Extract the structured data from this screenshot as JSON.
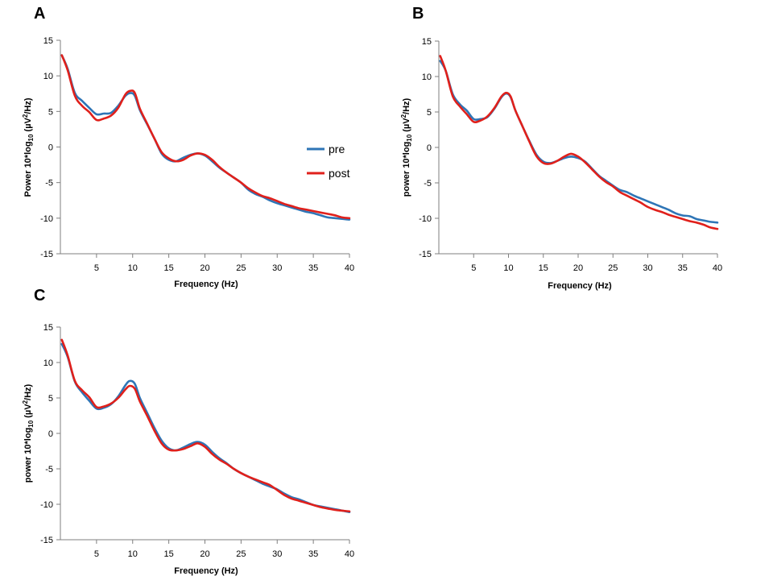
{
  "colors": {
    "pre": "#2e75b6",
    "post": "#e0201b"
  },
  "chart_data": [
    {
      "type": "line",
      "panel": "A",
      "xlabel": "Frequency (Hz)",
      "ylabel_parts": [
        "Power 10*log",
        "10",
        " (µV",
        "2",
        "/Hz)"
      ],
      "xlim": [
        0,
        40
      ],
      "ylim": [
        -15,
        15
      ],
      "xticks": [
        5,
        10,
        15,
        20,
        25,
        30,
        35,
        40
      ],
      "yticks": [
        15,
        10,
        5,
        0,
        -5,
        -10,
        -15
      ],
      "legend": {
        "position": "center-right",
        "entries": [
          "pre",
          "post"
        ]
      },
      "series": [
        {
          "name": "pre",
          "points": [
            [
              0.2,
              12.9
            ],
            [
              1,
              11
            ],
            [
              2,
              7.6
            ],
            [
              3,
              6.5
            ],
            [
              4,
              5.5
            ],
            [
              5,
              4.6
            ],
            [
              6,
              4.7
            ],
            [
              7,
              4.8
            ],
            [
              8,
              5.8
            ],
            [
              9,
              7.2
            ],
            [
              9.7,
              7.6
            ],
            [
              10.3,
              7.2
            ],
            [
              11,
              5.2
            ],
            [
              12,
              3.2
            ],
            [
              13,
              1.2
            ],
            [
              14,
              -0.9
            ],
            [
              15,
              -1.8
            ],
            [
              16,
              -2
            ],
            [
              17,
              -1.5
            ],
            [
              18,
              -1.1
            ],
            [
              19,
              -0.9
            ],
            [
              20,
              -1.2
            ],
            [
              21,
              -2
            ],
            [
              22,
              -2.9
            ],
            [
              23,
              -3.6
            ],
            [
              24,
              -4.3
            ],
            [
              25,
              -5
            ],
            [
              26,
              -6
            ],
            [
              27,
              -6.6
            ],
            [
              28,
              -7
            ],
            [
              29,
              -7.5
            ],
            [
              30,
              -7.9
            ],
            [
              31,
              -8.2
            ],
            [
              32,
              -8.5
            ],
            [
              33,
              -8.8
            ],
            [
              34,
              -9.1
            ],
            [
              35,
              -9.3
            ],
            [
              36,
              -9.6
            ],
            [
              37,
              -9.9
            ],
            [
              38,
              -10
            ],
            [
              39,
              -10.1
            ],
            [
              40,
              -10.2
            ]
          ]
        },
        {
          "name": "post",
          "points": [
            [
              0.2,
              12.9
            ],
            [
              1,
              10.8
            ],
            [
              2,
              7.2
            ],
            [
              3,
              5.8
            ],
            [
              4,
              4.9
            ],
            [
              5,
              3.8
            ],
            [
              6,
              4
            ],
            [
              7,
              4.4
            ],
            [
              8,
              5.5
            ],
            [
              9,
              7.4
            ],
            [
              9.7,
              7.9
            ],
            [
              10.3,
              7.6
            ],
            [
              11,
              5.4
            ],
            [
              12,
              3.3
            ],
            [
              13,
              1.2
            ],
            [
              14,
              -0.7
            ],
            [
              15,
              -1.6
            ],
            [
              16,
              -2
            ],
            [
              17,
              -1.8
            ],
            [
              18,
              -1.2
            ],
            [
              19,
              -0.9
            ],
            [
              20,
              -1.1
            ],
            [
              21,
              -1.8
            ],
            [
              22,
              -2.8
            ],
            [
              23,
              -3.6
            ],
            [
              24,
              -4.3
            ],
            [
              25,
              -5
            ],
            [
              26,
              -5.8
            ],
            [
              27,
              -6.4
            ],
            [
              28,
              -6.9
            ],
            [
              29,
              -7.2
            ],
            [
              30,
              -7.6
            ],
            [
              31,
              -8
            ],
            [
              32,
              -8.3
            ],
            [
              33,
              -8.6
            ],
            [
              34,
              -8.8
            ],
            [
              35,
              -9
            ],
            [
              36,
              -9.2
            ],
            [
              37,
              -9.4
            ],
            [
              38,
              -9.6
            ],
            [
              39,
              -9.9
            ],
            [
              40,
              -10
            ]
          ]
        }
      ]
    },
    {
      "type": "line",
      "panel": "B",
      "xlabel": "Frequency (Hz)",
      "ylabel_parts": [
        "power 10*log",
        "10",
        " (µV",
        "2",
        "/Hz)"
      ],
      "xlim": [
        0,
        40
      ],
      "ylim": [
        -15,
        15
      ],
      "xticks": [
        5,
        10,
        15,
        20,
        25,
        30,
        35,
        40
      ],
      "yticks": [
        15,
        10,
        5,
        0,
        -5,
        -10,
        -15
      ],
      "legend": null,
      "series": [
        {
          "name": "pre",
          "points": [
            [
              0.2,
              12.2
            ],
            [
              1,
              10.8
            ],
            [
              2,
              7.5
            ],
            [
              3,
              6.1
            ],
            [
              4,
              5.2
            ],
            [
              5,
              4
            ],
            [
              6,
              4
            ],
            [
              7,
              4.3
            ],
            [
              8,
              5.5
            ],
            [
              9,
              7.1
            ],
            [
              9.7,
              7.6
            ],
            [
              10.3,
              7.1
            ],
            [
              11,
              5.2
            ],
            [
              12,
              3
            ],
            [
              13,
              0.9
            ],
            [
              14,
              -1
            ],
            [
              15,
              -2
            ],
            [
              16,
              -2.2
            ],
            [
              17,
              -1.9
            ],
            [
              18,
              -1.5
            ],
            [
              19,
              -1.3
            ],
            [
              20,
              -1.5
            ],
            [
              21,
              -2
            ],
            [
              22,
              -3
            ],
            [
              23,
              -4
            ],
            [
              24,
              -4.7
            ],
            [
              25,
              -5.4
            ],
            [
              26,
              -6
            ],
            [
              27,
              -6.3
            ],
            [
              28,
              -6.8
            ],
            [
              29,
              -7.2
            ],
            [
              30,
              -7.6
            ],
            [
              31,
              -8
            ],
            [
              32,
              -8.4
            ],
            [
              33,
              -8.8
            ],
            [
              34,
              -9.3
            ],
            [
              35,
              -9.6
            ],
            [
              36,
              -9.7
            ],
            [
              37,
              -10.1
            ],
            [
              38,
              -10.3
            ],
            [
              39,
              -10.5
            ],
            [
              40,
              -10.6
            ]
          ]
        },
        {
          "name": "post",
          "points": [
            [
              0.2,
              12.9
            ],
            [
              1,
              10.8
            ],
            [
              2,
              7.2
            ],
            [
              3,
              5.8
            ],
            [
              4,
              4.7
            ],
            [
              5,
              3.6
            ],
            [
              6,
              3.8
            ],
            [
              7,
              4.4
            ],
            [
              8,
              5.6
            ],
            [
              9,
              7.2
            ],
            [
              9.7,
              7.7
            ],
            [
              10.3,
              7.2
            ],
            [
              11,
              5.2
            ],
            [
              12,
              3
            ],
            [
              13,
              0.8
            ],
            [
              14,
              -1.2
            ],
            [
              15,
              -2.2
            ],
            [
              16,
              -2.3
            ],
            [
              17,
              -1.9
            ],
            [
              18,
              -1.3
            ],
            [
              19,
              -0.9
            ],
            [
              20,
              -1.3
            ],
            [
              21,
              -2.1
            ],
            [
              22,
              -3.1
            ],
            [
              23,
              -4.1
            ],
            [
              24,
              -4.9
            ],
            [
              25,
              -5.5
            ],
            [
              26,
              -6.3
            ],
            [
              27,
              -6.8
            ],
            [
              28,
              -7.3
            ],
            [
              29,
              -7.8
            ],
            [
              30,
              -8.4
            ],
            [
              31,
              -8.8
            ],
            [
              32,
              -9.1
            ],
            [
              33,
              -9.5
            ],
            [
              34,
              -9.8
            ],
            [
              35,
              -10.1
            ],
            [
              36,
              -10.4
            ],
            [
              37,
              -10.6
            ],
            [
              38,
              -10.9
            ],
            [
              39,
              -11.3
            ],
            [
              40,
              -11.5
            ]
          ]
        }
      ]
    },
    {
      "type": "line",
      "panel": "C",
      "xlabel": "Frequency (Hz)",
      "ylabel_parts": [
        "power 10*log",
        "10",
        " (µV",
        "2",
        "/Hz)"
      ],
      "xlim": [
        0,
        40
      ],
      "ylim": [
        -15,
        15
      ],
      "xticks": [
        5,
        10,
        15,
        20,
        25,
        30,
        35,
        40
      ],
      "yticks": [
        15,
        10,
        5,
        0,
        -5,
        -10,
        -15
      ],
      "legend": null,
      "series": [
        {
          "name": "pre",
          "points": [
            [
              0.2,
              12.6
            ],
            [
              1,
              10.8
            ],
            [
              2,
              7.3
            ],
            [
              3,
              5.8
            ],
            [
              4,
              4.6
            ],
            [
              5,
              3.5
            ],
            [
              6,
              3.6
            ],
            [
              7,
              4.1
            ],
            [
              8,
              5.2
            ],
            [
              9,
              6.8
            ],
            [
              9.6,
              7.4
            ],
            [
              10.3,
              7
            ],
            [
              11,
              5
            ],
            [
              12,
              2.9
            ],
            [
              13,
              0.8
            ],
            [
              14,
              -1
            ],
            [
              15,
              -2.1
            ],
            [
              16,
              -2.4
            ],
            [
              17,
              -2
            ],
            [
              18,
              -1.5
            ],
            [
              19,
              -1.2
            ],
            [
              20,
              -1.6
            ],
            [
              21,
              -2.6
            ],
            [
              22,
              -3.5
            ],
            [
              23,
              -4.2
            ],
            [
              24,
              -5
            ],
            [
              25,
              -5.6
            ],
            [
              26,
              -6.1
            ],
            [
              27,
              -6.6
            ],
            [
              28,
              -7.1
            ],
            [
              29,
              -7.5
            ],
            [
              30,
              -7.9
            ],
            [
              31,
              -8.5
            ],
            [
              32,
              -9
            ],
            [
              33,
              -9.3
            ],
            [
              34,
              -9.7
            ],
            [
              35,
              -10.1
            ],
            [
              36,
              -10.3
            ],
            [
              37,
              -10.5
            ],
            [
              38,
              -10.7
            ],
            [
              39,
              -10.9
            ],
            [
              40,
              -11.1
            ]
          ]
        },
        {
          "name": "post",
          "points": [
            [
              0.2,
              13.2
            ],
            [
              1,
              11
            ],
            [
              2,
              7.4
            ],
            [
              3,
              6.1
            ],
            [
              4,
              5.1
            ],
            [
              5,
              3.7
            ],
            [
              6,
              3.8
            ],
            [
              7,
              4.2
            ],
            [
              8,
              5
            ],
            [
              9,
              6.2
            ],
            [
              9.6,
              6.7
            ],
            [
              10.3,
              6.3
            ],
            [
              11,
              4.5
            ],
            [
              12,
              2.5
            ],
            [
              13,
              0.4
            ],
            [
              14,
              -1.4
            ],
            [
              15,
              -2.3
            ],
            [
              16,
              -2.4
            ],
            [
              17,
              -2.2
            ],
            [
              18,
              -1.8
            ],
            [
              19,
              -1.4
            ],
            [
              20,
              -1.9
            ],
            [
              21,
              -2.9
            ],
            [
              22,
              -3.7
            ],
            [
              23,
              -4.3
            ],
            [
              24,
              -5
            ],
            [
              25,
              -5.6
            ],
            [
              26,
              -6.1
            ],
            [
              27,
              -6.5
            ],
            [
              28,
              -6.9
            ],
            [
              29,
              -7.3
            ],
            [
              30,
              -8
            ],
            [
              31,
              -8.7
            ],
            [
              32,
              -9.2
            ],
            [
              33,
              -9.5
            ],
            [
              34,
              -9.8
            ],
            [
              35,
              -10.1
            ],
            [
              36,
              -10.4
            ],
            [
              37,
              -10.6
            ],
            [
              38,
              -10.8
            ],
            [
              39,
              -10.9
            ],
            [
              40,
              -11
            ]
          ]
        }
      ]
    }
  ]
}
